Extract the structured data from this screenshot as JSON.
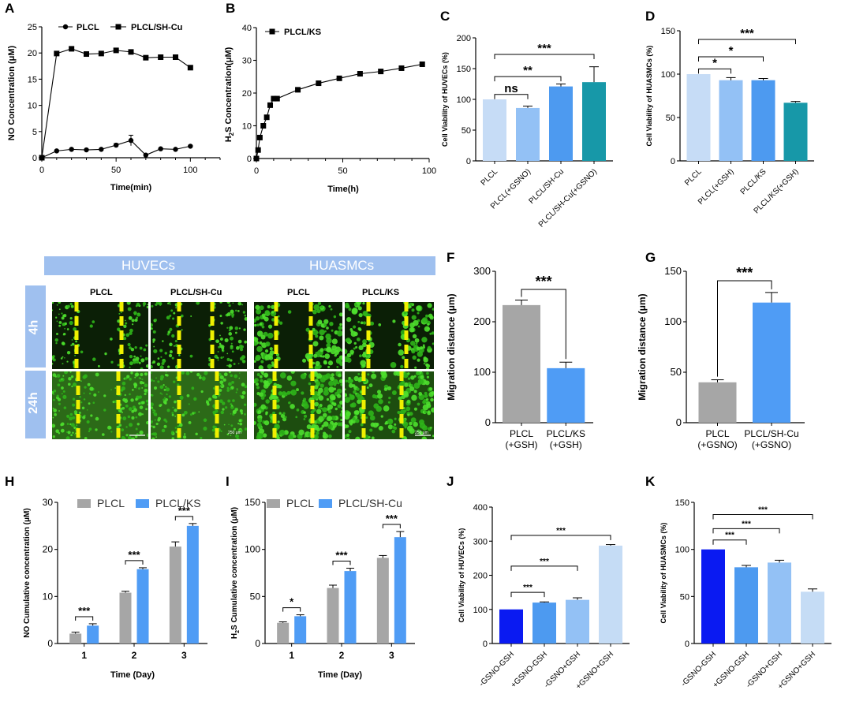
{
  "colors": {
    "grey": "#a6a6a6",
    "blue": "#4f9cf5",
    "c_light": "#c6dcf6",
    "c_mid": "#93c1f5",
    "c_blue": "#4d9af0",
    "teal": "#1798a8",
    "k_blue": "#0a1af2",
    "k_pale": "#c5dcf5"
  },
  "A": {
    "letter": "A",
    "xlabel": "Time(min)",
    "ylabel": "NO Concentration (μM)",
    "xlim": [
      0,
      120
    ],
    "ylim": [
      0,
      25
    ],
    "xticks": [
      0,
      50,
      100
    ],
    "yticks": [
      0,
      5,
      10,
      15,
      20,
      25
    ],
    "series": [
      {
        "name": "PLCL",
        "marker": "circle",
        "x": [
          0,
          10,
          20,
          30,
          40,
          50,
          60,
          70,
          80,
          90,
          100
        ],
        "y": [
          0,
          1.3,
          1.6,
          1.5,
          1.6,
          2.4,
          3.3,
          0.5,
          1.7,
          1.6,
          2.2
        ],
        "err": [
          0,
          0.1,
          0.1,
          0.1,
          0.1,
          0.3,
          1,
          0.1,
          0.1,
          0.1,
          0.1
        ]
      },
      {
        "name": "PLCL/SH-Cu",
        "marker": "square",
        "x": [
          0,
          10,
          20,
          30,
          40,
          50,
          60,
          70,
          80,
          90,
          100
        ],
        "y": [
          0,
          19.9,
          20.8,
          19.8,
          19.9,
          20.5,
          20.2,
          19.1,
          19.2,
          19.2,
          17.2
        ],
        "err": [
          0,
          0.2,
          0.2,
          0.4,
          0.4,
          0.2,
          0.2,
          0.2,
          0.2,
          0.2,
          0.3
        ]
      }
    ]
  },
  "B": {
    "letter": "B",
    "xlabel": "Time(h)",
    "ylabel_pre": "H",
    "ylabel_sub": "2",
    "ylabel_post": "S Concentration(μM)",
    "xlim": [
      0,
      100
    ],
    "ylim": [
      0,
      40
    ],
    "xticks": [
      0,
      50,
      100
    ],
    "yticks": [
      0,
      10,
      20,
      30,
      40
    ],
    "series": [
      {
        "name": "PLCL/KS",
        "marker": "square",
        "x": [
          0,
          1,
          2,
          4,
          6,
          8,
          10,
          12,
          24,
          36,
          48,
          60,
          72,
          84,
          96
        ],
        "y": [
          0,
          2.6,
          6.4,
          10,
          12.6,
          16.3,
          18.3,
          18.3,
          21,
          23,
          24.5,
          25.9,
          26.6,
          27.6,
          28.8
        ]
      }
    ]
  },
  "C": {
    "letter": "C",
    "ylabel": "Cell Viability of HUVECs (%)",
    "ylim": [
      0,
      200
    ],
    "yticks": [
      0,
      50,
      100,
      150,
      200
    ],
    "categories": [
      "PLCL",
      "PLCL(+GSNO)",
      "PLCL/SH-Cu",
      "PLCL/SH-Cu(+GSNO)"
    ],
    "values": [
      100,
      86,
      121,
      128
    ],
    "err": [
      0,
      3,
      4,
      25
    ],
    "sig": [
      {
        "text": "ns",
        "i": 0,
        "j": 1,
        "y": 108
      },
      {
        "text": "**",
        "i": 0,
        "j": 2,
        "y": 137
      },
      {
        "text": "***",
        "i": 0,
        "j": 3,
        "y": 173
      }
    ]
  },
  "D": {
    "letter": "D",
    "ylabel": "Cell Viability of HUASMCs (%)",
    "ylim": [
      0,
      150
    ],
    "yticks": [
      0,
      50,
      100,
      150
    ],
    "categories": [
      "PLCL",
      "PLCL(+GSH)",
      "PLCL/KS",
      "PLCL/KS(+GSH)"
    ],
    "values": [
      100,
      93,
      93,
      67
    ],
    "err": [
      0,
      3,
      2,
      1.5
    ],
    "sig": [
      {
        "text": "*",
        "i": 0,
        "j": 1,
        "y": 106
      },
      {
        "text": "*",
        "i": 0,
        "j": 2,
        "y": 120
      },
      {
        "text": "***",
        "i": 0,
        "j": 3,
        "y": 140
      }
    ]
  },
  "E": {
    "letter": "E",
    "group_huvec": "HUVECs",
    "group_huasmc": "HUASMCs",
    "row_4h": "4h",
    "row_24h": "24h",
    "cols": [
      "PLCL",
      "PLCL/SH-Cu",
      "PLCL",
      "PLCL/KS"
    ],
    "scale_bar": "250 μm"
  },
  "F": {
    "letter": "F",
    "ylabel": "Migration distance (μm)",
    "ylim": [
      0,
      300
    ],
    "yticks": [
      0,
      100,
      200,
      300
    ],
    "cat_line1": [
      "PLCL",
      "PLCL/KS"
    ],
    "cat_line2": [
      "(+GSH)",
      "(+GSH)"
    ],
    "values": [
      233,
      108
    ],
    "err": [
      10,
      12
    ],
    "sig": "***"
  },
  "G": {
    "letter": "G",
    "ylabel": "Migration distance (μm)",
    "ylim": [
      0,
      150
    ],
    "yticks": [
      0,
      50,
      100,
      150
    ],
    "cat_line1": [
      "PLCL",
      "PLCL/SH-Cu"
    ],
    "cat_line2": [
      "(+GSNO)",
      "(+GSNO)"
    ],
    "values": [
      40,
      119
    ],
    "err": [
      2.5,
      10
    ],
    "sig": "***"
  },
  "H": {
    "letter": "H",
    "xlabel": "Time (Day)",
    "ylabel": "NO Cumulative concentration (μM)",
    "ylim": [
      0,
      30
    ],
    "yticks": [
      0,
      10,
      20,
      30
    ],
    "categories": [
      "1",
      "2",
      "3"
    ],
    "series": [
      {
        "name": "PLCL",
        "values": [
          2.1,
          10.8,
          20.6
        ],
        "err": [
          0.3,
          0.3,
          1
        ]
      },
      {
        "name": "PLCL/KS",
        "values": [
          3.8,
          15.8,
          25
        ],
        "err": [
          0.4,
          0.3,
          0.5
        ]
      }
    ],
    "sig": [
      "***",
      "***",
      "***"
    ]
  },
  "I": {
    "letter": "I",
    "xlabel": "Time (Day)",
    "ylabel_pre": "H",
    "ylabel_sub": "2",
    "ylabel_post": "S Cumulative  concentration (μM)",
    "ylim": [
      0,
      150
    ],
    "yticks": [
      0,
      50,
      100,
      150
    ],
    "categories": [
      "1",
      "2",
      "3"
    ],
    "series": [
      {
        "name": "PLCL",
        "values": [
          22,
          59,
          91
        ],
        "err": [
          1,
          3,
          2.5
        ]
      },
      {
        "name": "PLCL/SH-Cu",
        "values": [
          29,
          77,
          113
        ],
        "err": [
          1.5,
          3,
          6
        ]
      }
    ],
    "sig": [
      "*",
      "***",
      "***"
    ]
  },
  "J": {
    "letter": "J",
    "ylabel": "Cell Viability of HUVECs (%)",
    "ylim": [
      0,
      400
    ],
    "yticks": [
      0,
      100,
      200,
      300,
      400
    ],
    "categories": [
      "-GSNO-GSH",
      "+GSNO-GSH",
      "-GSNO+GSH",
      "+GSNO+GSH"
    ],
    "values": [
      100,
      120,
      128,
      287
    ],
    "err": [
      0,
      2,
      6,
      3
    ],
    "sig": [
      {
        "text": "***",
        "i": 0,
        "j": 1,
        "y": 150
      },
      {
        "text": "***",
        "i": 0,
        "j": 2,
        "y": 227
      },
      {
        "text": "***",
        "i": 0,
        "j": 3,
        "y": 317
      }
    ]
  },
  "K": {
    "letter": "K",
    "ylabel": "Cell Viability of HUASMCs (%)",
    "ylim": [
      0,
      150
    ],
    "yticks": [
      0,
      50,
      100,
      150
    ],
    "categories": [
      "-GSNO-GSH",
      "+GSNO-GSH",
      "-GSNO+GSH",
      "+GSNO+GSH"
    ],
    "values": [
      100,
      81,
      86,
      55
    ],
    "err": [
      0,
      2,
      2.5,
      3
    ],
    "sig": [
      {
        "text": "***",
        "i": 0,
        "j": 1,
        "y": 110
      },
      {
        "text": "***",
        "i": 0,
        "j": 2,
        "y": 122
      },
      {
        "text": "***",
        "i": 0,
        "j": 3,
        "y": 137
      }
    ]
  }
}
